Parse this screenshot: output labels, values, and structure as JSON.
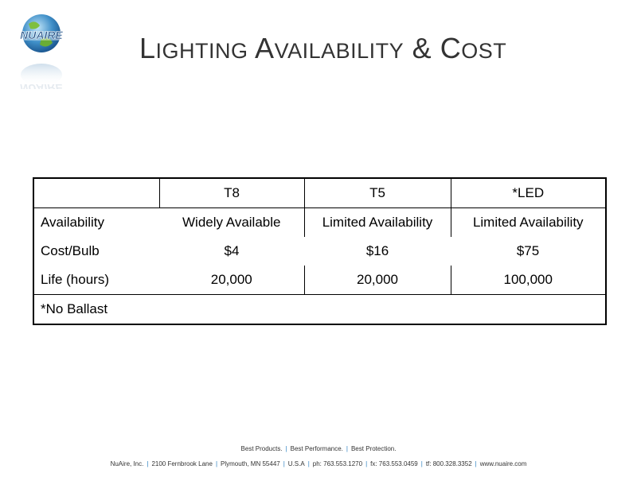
{
  "logo": {
    "text": "NUAIRE"
  },
  "title": {
    "w1_first": "L",
    "w1_rest": "IGHTING",
    "w2_first": "A",
    "w2_rest": "VAILABILITY",
    "amp": "&",
    "w3_first": "C",
    "w3_rest": "OST"
  },
  "table": {
    "headers": [
      "",
      "T8",
      "T5",
      "*LED"
    ],
    "rows": [
      {
        "label": "Availability",
        "values": [
          "Widely Available",
          "Limited Availability",
          "Limited Availability"
        ]
      },
      {
        "label": "Cost/Bulb",
        "values": [
          "$4",
          "$16",
          "$75"
        ]
      },
      {
        "label": "Life (hours)",
        "values": [
          "20,000",
          "20,000",
          "100,000"
        ]
      }
    ],
    "note": "*No Ballast"
  },
  "footer": {
    "tagline": [
      "Best Products.",
      "Best Performance.",
      "Best Protection."
    ],
    "contact": [
      "NuAire, Inc.",
      "2100 Fernbrook Lane",
      "Plymouth, MN 55447",
      "U.S.A",
      "ph: 763.553.1270",
      "fx: 763.553.0459",
      "tf: 800.328.3352",
      "www.nuaire.com"
    ]
  },
  "colors": {
    "accent": "#2a7fc0",
    "title": "#333333"
  }
}
